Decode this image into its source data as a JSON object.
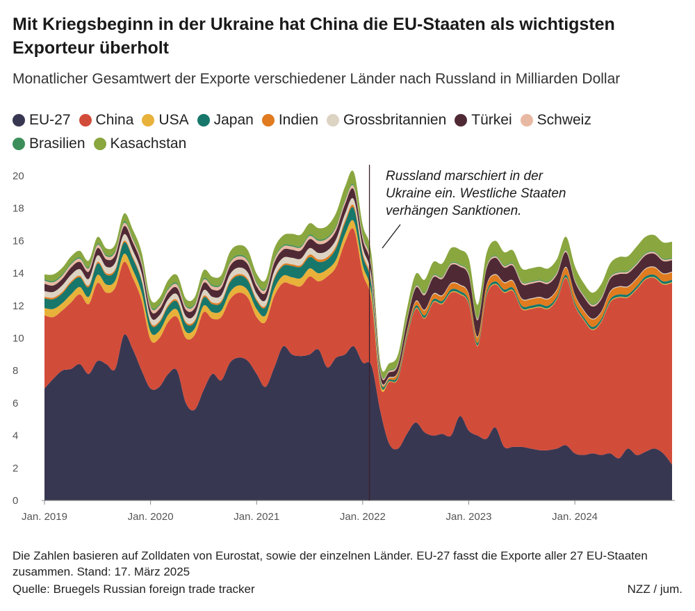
{
  "header": {
    "title": "Mit Kriegsbeginn in der Ukraine hat China die EU-Staaten als wichtigsten Exporteur überholt",
    "subtitle": "Monatlicher Gesamtwert der Exporte verschiedener Länder nach Russland in Milliarden Dollar"
  },
  "footer": {
    "note": "Die Zahlen basieren auf Zolldaten von Eurostat, sowie der einzelnen Länder. EU-27 fasst die Exporte aller 27 EU-Staaten zusammen. Stand: 17. März 2025",
    "source": "Quelle: Bruegels Russian foreign trade tracker",
    "credit": "NZZ / jum."
  },
  "chart_data": {
    "type": "area",
    "stacked": true,
    "title": "Mit Kriegsbeginn in der Ukraine hat China die EU-Staaten als wichtigsten Exporteur überholt",
    "subtitle": "Monatlicher Gesamtwert der Exporte verschiedener Länder nach Russland in Milliarden Dollar",
    "x_start": "2019-01",
    "x_end": "2024-12",
    "x_tick_labels": [
      "Jan. 2019",
      "Jan. 2020",
      "Jan. 2021",
      "Jan. 2022",
      "Jan. 2023",
      "Jan. 2024"
    ],
    "ylim": [
      0,
      20
    ],
    "y_ticks": [
      0,
      2,
      4,
      6,
      8,
      10,
      12,
      14,
      16,
      18,
      20
    ],
    "grid": false,
    "legend_position": "top",
    "annotation": {
      "date": "2022-02",
      "lines": [
        "Russland marschiert in der",
        "Ukraine ein. Westliche Staaten",
        "verhängen Sanktionen."
      ]
    },
    "series": [
      {
        "name": "EU-27",
        "color": "#383751",
        "values": [
          6.9,
          7.5,
          8.0,
          8.1,
          8.4,
          7.8,
          8.6,
          8.4,
          8.1,
          10.2,
          9.3,
          8.0,
          6.9,
          7.0,
          7.8,
          8.0,
          6.0,
          5.6,
          6.8,
          7.8,
          7.4,
          8.5,
          8.8,
          8.6,
          7.8,
          7.0,
          8.2,
          9.5,
          9.0,
          8.9,
          9.0,
          9.3,
          8.2,
          8.8,
          9.0,
          9.5,
          8.5,
          8.3,
          5.5,
          3.5,
          3.2,
          4.1,
          4.8,
          4.2,
          4.0,
          4.1,
          4.0,
          5.2,
          4.3,
          4.0,
          3.8,
          4.5,
          3.3,
          3.3,
          3.3,
          3.2,
          3.1,
          3.1,
          3.2,
          3.4,
          2.9,
          2.8,
          2.9,
          2.8,
          2.9,
          2.6,
          3.2,
          2.8,
          3.0,
          3.2,
          2.9,
          2.2
        ]
      },
      {
        "name": "China",
        "color": "#d24c3a",
        "values": [
          4.5,
          3.8,
          3.7,
          4.1,
          4.3,
          4.3,
          4.8,
          4.4,
          5.0,
          4.5,
          4.4,
          4.3,
          3.0,
          3.0,
          3.2,
          3.3,
          4.0,
          4.6,
          4.8,
          3.4,
          3.9,
          3.9,
          4.0,
          3.9,
          3.5,
          4.0,
          4.4,
          3.9,
          4.3,
          4.3,
          4.8,
          4.2,
          5.6,
          5.6,
          6.9,
          7.2,
          5.5,
          4.0,
          1.5,
          3.8,
          4.3,
          5.9,
          7.0,
          7.0,
          8.2,
          8.0,
          8.8,
          7.5,
          7.8,
          5.5,
          8.8,
          8.8,
          9.5,
          9.6,
          8.5,
          8.6,
          8.8,
          8.7,
          9.2,
          10.3,
          9.1,
          8.3,
          7.6,
          8.2,
          9.3,
          9.9,
          9.3,
          10.2,
          10.6,
          10.5,
          10.4,
          11.2
        ]
      },
      {
        "name": "USA",
        "color": "#e8b13a",
        "values": [
          0.45,
          0.5,
          0.45,
          0.5,
          0.45,
          0.45,
          0.5,
          0.5,
          0.45,
          0.5,
          0.5,
          0.5,
          0.5,
          0.45,
          0.45,
          0.45,
          0.4,
          0.4,
          0.4,
          0.4,
          0.4,
          0.45,
          0.45,
          0.45,
          0.5,
          0.4,
          0.45,
          0.45,
          0.45,
          0.5,
          0.5,
          0.5,
          0.45,
          0.45,
          0.5,
          0.5,
          0.5,
          0.45,
          0.2,
          0.05,
          0.05,
          0.05,
          0.05,
          0.05,
          0.05,
          0.05,
          0.05,
          0.05,
          0.05,
          0.05,
          0.05,
          0.05,
          0.05,
          0.05,
          0.05,
          0.05,
          0.05,
          0.05,
          0.05,
          0.05,
          0.05,
          0.05,
          0.05,
          0.05,
          0.05,
          0.05,
          0.05,
          0.05,
          0.05,
          0.05,
          0.05,
          0.05
        ]
      },
      {
        "name": "Japan",
        "color": "#17776b",
        "values": [
          0.6,
          0.6,
          0.6,
          0.7,
          0.6,
          0.6,
          0.7,
          0.6,
          0.6,
          0.7,
          0.7,
          0.7,
          0.5,
          0.5,
          0.5,
          0.5,
          0.5,
          0.4,
          0.5,
          0.5,
          0.5,
          0.6,
          0.6,
          0.6,
          0.5,
          0.5,
          0.6,
          0.6,
          0.7,
          0.7,
          0.7,
          0.7,
          0.6,
          0.7,
          0.7,
          0.8,
          0.6,
          0.5,
          0.2,
          0.1,
          0.15,
          0.15,
          0.15,
          0.15,
          0.15,
          0.15,
          0.15,
          0.15,
          0.15,
          0.15,
          0.15,
          0.15,
          0.15,
          0.15,
          0.15,
          0.15,
          0.15,
          0.15,
          0.15,
          0.15,
          0.15,
          0.15,
          0.15,
          0.15,
          0.15,
          0.15,
          0.15,
          0.15,
          0.15,
          0.15,
          0.15,
          0.15
        ]
      },
      {
        "name": "Indien",
        "color": "#e07b1f",
        "values": [
          0.1,
          0.1,
          0.1,
          0.1,
          0.1,
          0.1,
          0.1,
          0.1,
          0.1,
          0.1,
          0.1,
          0.1,
          0.1,
          0.1,
          0.1,
          0.1,
          0.1,
          0.1,
          0.1,
          0.1,
          0.1,
          0.1,
          0.1,
          0.1,
          0.1,
          0.1,
          0.1,
          0.1,
          0.1,
          0.1,
          0.15,
          0.15,
          0.15,
          0.15,
          0.15,
          0.15,
          0.15,
          0.15,
          0.1,
          0.1,
          0.2,
          0.2,
          0.25,
          0.3,
          0.3,
          0.3,
          0.35,
          0.35,
          0.4,
          0.35,
          0.4,
          0.4,
          0.4,
          0.4,
          0.4,
          0.4,
          0.4,
          0.4,
          0.4,
          0.45,
          0.45,
          0.4,
          0.45,
          0.4,
          0.45,
          0.45,
          0.45,
          0.45,
          0.45,
          0.45,
          0.45,
          0.45
        ]
      },
      {
        "name": "Grossbritannien",
        "color": "#ddd3c3",
        "values": [
          0.35,
          0.35,
          0.4,
          0.4,
          0.4,
          0.4,
          0.4,
          0.4,
          0.4,
          0.4,
          0.4,
          0.4,
          0.35,
          0.35,
          0.35,
          0.35,
          0.35,
          0.35,
          0.35,
          0.35,
          0.35,
          0.4,
          0.4,
          0.4,
          0.35,
          0.35,
          0.4,
          0.4,
          0.4,
          0.4,
          0.4,
          0.4,
          0.4,
          0.4,
          0.4,
          0.4,
          0.35,
          0.35,
          0.1,
          0.05,
          0.05,
          0.05,
          0.05,
          0.05,
          0.05,
          0.05,
          0.05,
          0.05,
          0.05,
          0.05,
          0.05,
          0.05,
          0.05,
          0.05,
          0.05,
          0.05,
          0.05,
          0.05,
          0.05,
          0.05,
          0.05,
          0.05,
          0.05,
          0.05,
          0.05,
          0.05,
          0.05,
          0.05,
          0.05,
          0.05,
          0.05,
          0.05
        ]
      },
      {
        "name": "Türkei",
        "color": "#4f2a35",
        "values": [
          0.45,
          0.4,
          0.4,
          0.45,
          0.45,
          0.45,
          0.45,
          0.45,
          0.45,
          0.5,
          0.5,
          0.5,
          0.4,
          0.4,
          0.4,
          0.4,
          0.4,
          0.4,
          0.45,
          0.45,
          0.45,
          0.5,
          0.5,
          0.5,
          0.45,
          0.45,
          0.5,
          0.5,
          0.5,
          0.5,
          0.55,
          0.55,
          0.55,
          0.55,
          0.6,
          0.6,
          0.5,
          0.5,
          0.3,
          0.3,
          0.4,
          0.6,
          0.8,
          0.9,
          1.0,
          1.0,
          1.1,
          1.1,
          1.1,
          1.0,
          1.0,
          1.0,
          0.9,
          0.9,
          0.9,
          0.9,
          0.9,
          0.9,
          0.9,
          0.9,
          0.8,
          0.8,
          0.75,
          0.75,
          0.75,
          0.75,
          0.8,
          0.8,
          0.8,
          0.8,
          0.75,
          0.7
        ]
      },
      {
        "name": "Schweiz",
        "color": "#e8b9a2",
        "values": [
          0.2,
          0.2,
          0.2,
          0.2,
          0.2,
          0.2,
          0.2,
          0.2,
          0.2,
          0.2,
          0.2,
          0.2,
          0.2,
          0.2,
          0.2,
          0.2,
          0.2,
          0.2,
          0.2,
          0.2,
          0.2,
          0.2,
          0.2,
          0.2,
          0.2,
          0.2,
          0.2,
          0.2,
          0.2,
          0.2,
          0.2,
          0.2,
          0.2,
          0.2,
          0.2,
          0.2,
          0.2,
          0.2,
          0.1,
          0.1,
          0.1,
          0.1,
          0.1,
          0.1,
          0.1,
          0.1,
          0.1,
          0.1,
          0.1,
          0.1,
          0.1,
          0.1,
          0.1,
          0.1,
          0.1,
          0.1,
          0.1,
          0.1,
          0.1,
          0.1,
          0.1,
          0.1,
          0.1,
          0.1,
          0.1,
          0.1,
          0.1,
          0.1,
          0.1,
          0.1,
          0.1,
          0.1
        ]
      },
      {
        "name": "Brasilien",
        "color": "#3c8f5a",
        "values": [
          0.08,
          0.08,
          0.08,
          0.08,
          0.08,
          0.08,
          0.08,
          0.08,
          0.08,
          0.08,
          0.08,
          0.08,
          0.08,
          0.08,
          0.08,
          0.08,
          0.08,
          0.08,
          0.08,
          0.08,
          0.08,
          0.08,
          0.08,
          0.08,
          0.08,
          0.08,
          0.08,
          0.08,
          0.08,
          0.08,
          0.08,
          0.08,
          0.08,
          0.08,
          0.08,
          0.08,
          0.08,
          0.08,
          0.05,
          0.05,
          0.05,
          0.05,
          0.05,
          0.05,
          0.05,
          0.05,
          0.05,
          0.05,
          0.05,
          0.05,
          0.05,
          0.05,
          0.05,
          0.05,
          0.05,
          0.05,
          0.05,
          0.05,
          0.05,
          0.05,
          0.05,
          0.05,
          0.05,
          0.05,
          0.05,
          0.05,
          0.05,
          0.05,
          0.05,
          0.05,
          0.05,
          0.05
        ]
      },
      {
        "name": "Kasachstan",
        "color": "#8aa63f",
        "values": [
          0.3,
          0.4,
          0.4,
          0.4,
          0.4,
          0.4,
          0.4,
          0.4,
          0.4,
          0.5,
          0.5,
          0.5,
          0.4,
          0.4,
          0.5,
          0.5,
          0.4,
          0.4,
          0.5,
          0.5,
          0.5,
          0.6,
          0.6,
          0.6,
          0.5,
          0.5,
          0.6,
          0.6,
          0.7,
          0.7,
          0.7,
          0.7,
          0.7,
          0.8,
          0.8,
          0.8,
          0.6,
          0.6,
          0.4,
          0.4,
          0.5,
          0.6,
          0.7,
          0.8,
          0.8,
          0.8,
          0.9,
          0.9,
          0.9,
          0.8,
          0.8,
          0.9,
          0.8,
          0.8,
          0.8,
          0.8,
          0.8,
          0.8,
          0.8,
          0.8,
          0.8,
          0.7,
          0.7,
          0.8,
          0.8,
          0.9,
          0.9,
          1.0,
          1.0,
          1.0,
          1.0,
          1.0
        ]
      }
    ]
  }
}
